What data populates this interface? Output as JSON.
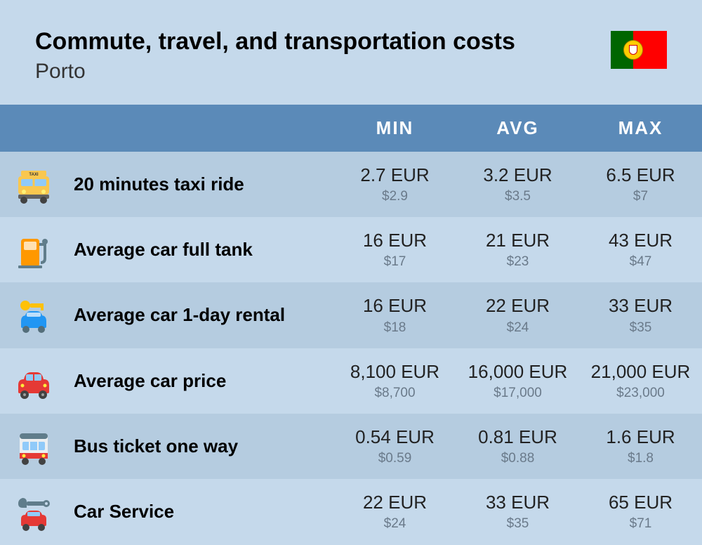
{
  "header": {
    "title": "Commute, travel, and transportation costs",
    "subtitle": "Porto"
  },
  "columns": {
    "min": "MIN",
    "avg": "AVG",
    "max": "MAX"
  },
  "rows": [
    {
      "icon": "taxi",
      "label": "20 minutes taxi ride",
      "min_eur": "2.7 EUR",
      "min_usd": "$2.9",
      "avg_eur": "3.2 EUR",
      "avg_usd": "$3.5",
      "max_eur": "6.5 EUR",
      "max_usd": "$7"
    },
    {
      "icon": "fuel",
      "label": "Average car full tank",
      "min_eur": "16 EUR",
      "min_usd": "$17",
      "avg_eur": "21 EUR",
      "avg_usd": "$23",
      "max_eur": "43 EUR",
      "max_usd": "$47"
    },
    {
      "icon": "rental",
      "label": "Average car 1-day rental",
      "min_eur": "16 EUR",
      "min_usd": "$18",
      "avg_eur": "22 EUR",
      "avg_usd": "$24",
      "max_eur": "33 EUR",
      "max_usd": "$35"
    },
    {
      "icon": "car",
      "label": "Average car price",
      "min_eur": "8,100 EUR",
      "min_usd": "$8,700",
      "avg_eur": "16,000 EUR",
      "avg_usd": "$17,000",
      "max_eur": "21,000 EUR",
      "max_usd": "$23,000"
    },
    {
      "icon": "bus",
      "label": "Bus ticket one way",
      "min_eur": "0.54 EUR",
      "min_usd": "$0.59",
      "avg_eur": "0.81 EUR",
      "avg_usd": "$0.88",
      "max_eur": "1.6 EUR",
      "max_usd": "$1.8"
    },
    {
      "icon": "service",
      "label": "Car Service",
      "min_eur": "22 EUR",
      "min_usd": "$24",
      "avg_eur": "33 EUR",
      "avg_usd": "$35",
      "max_eur": "65 EUR",
      "max_usd": "$71"
    }
  ],
  "colors": {
    "page_bg": "#c5d9eb",
    "header_bg": "#5b8ab8",
    "row_odd": "#b5cce0",
    "row_even": "#c5d9eb",
    "text_main": "#222222",
    "text_sub": "#6a7a8a"
  }
}
